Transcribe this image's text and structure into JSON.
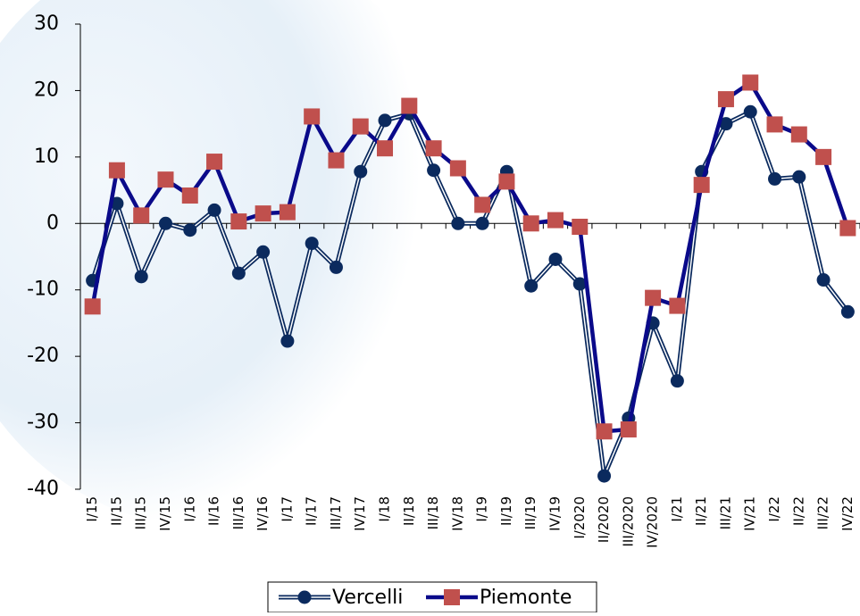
{
  "chart_data": {
    "type": "line",
    "categories": [
      "I/15",
      "II/15",
      "III/15",
      "IV/15",
      "I/16",
      "II/16",
      "III/16",
      "IV/16",
      "I/17",
      "II/17",
      "III/17",
      "IV/17",
      "I/18",
      "II/18",
      "III/18",
      "IV/18",
      "I/19",
      "II/19",
      "III/19",
      "IV/19",
      "I/2020",
      "II/2020",
      "III/2020",
      "IV/2020",
      "I/21",
      "II/21",
      "III/21",
      "IV/21",
      "I/22",
      "II/22",
      "III/22",
      "IV/22"
    ],
    "series": [
      {
        "name": "Vercelli",
        "color": "#0b2a5e",
        "values": [
          -8.6,
          3,
          -8,
          0,
          -1,
          2,
          -7.5,
          -4.3,
          -17.7,
          -3,
          -6.6,
          7.8,
          15.5,
          16.5,
          8,
          0,
          0,
          7.8,
          -9.4,
          -5.4,
          -9.1,
          -38,
          -29.3,
          -15,
          -23.7,
          7.8,
          15,
          16.8,
          6.7,
          7,
          -8.5,
          -13.3
        ]
      },
      {
        "name": "Piemonte",
        "color": "#0a0a8a",
        "marker_color": "#c0504d",
        "values": [
          -12.5,
          8,
          1.2,
          6.6,
          4.2,
          9.3,
          0.3,
          1.5,
          1.7,
          16.1,
          9.5,
          14.6,
          11.3,
          17.7,
          11.3,
          8.3,
          2.8,
          6.3,
          0,
          0.5,
          -0.5,
          -31.3,
          -31,
          -11.2,
          -12.4,
          5.8,
          18.7,
          21.2,
          14.9,
          13.4,
          10,
          -0.7
        ]
      }
    ],
    "ylim": [
      -40,
      30
    ],
    "yticks": [
      -40,
      -30,
      -20,
      -10,
      0,
      10,
      20,
      30
    ],
    "legend": "bottom"
  }
}
